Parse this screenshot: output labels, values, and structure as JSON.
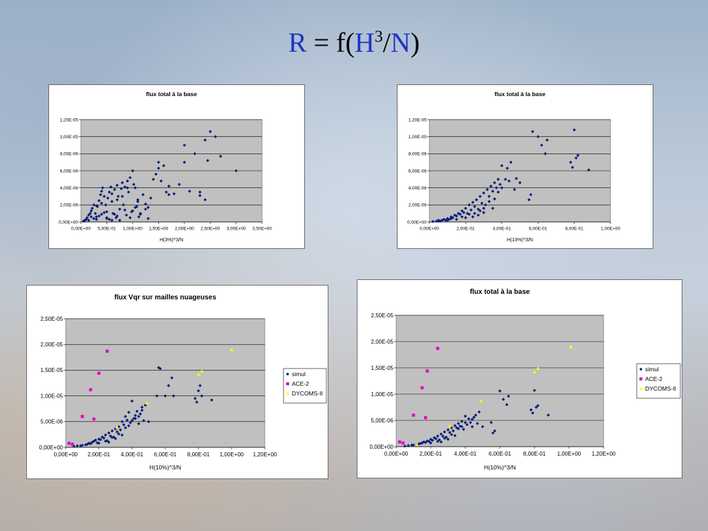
{
  "slide": {
    "title_parts": [
      "R",
      " = f(",
      "H",
      "3",
      "/",
      "N",
      ")"
    ]
  },
  "colors": {
    "simul": "#0a1e7a",
    "ace2": "#e000c8",
    "dycoms": "#ffff00",
    "plot_bg": "#c0c0c0",
    "title_accent": "#1f33c6"
  },
  "chart_data": [
    {
      "id": "c1",
      "type": "scatter",
      "title": "flux total à la base",
      "xlabel": "H(3%)^3/N",
      "ylabel": "",
      "xlim": [
        0,
        3.5
      ],
      "ylim": [
        0,
        1.2e-05
      ],
      "x_ticks": [
        0,
        0.5,
        1.0,
        1.5,
        2.0,
        2.5,
        3.0,
        3.5
      ],
      "x_tick_labels": [
        "0,00E+00",
        "5,00E-01",
        "1,00E+00",
        "1,50E+00",
        "2,00E+00",
        "2,50E+00",
        "3,00E+00",
        "3,50E+00"
      ],
      "y_ticks": [
        0,
        2e-06,
        4e-06,
        6e-06,
        8e-06,
        1e-05,
        1.2e-05
      ],
      "y_tick_labels": [
        "0,00E+00",
        "2,00E-06",
        "4,00E-06",
        "6,00E-06",
        "8,00E-06",
        "1,00E-05",
        "1,20E-05"
      ],
      "grid": true,
      "legend": "none",
      "series": [
        {
          "key": "simul",
          "x": [
            0.05,
            0.08,
            0.1,
            0.12,
            0.15,
            0.18,
            0.2,
            0.22,
            0.25,
            0.28,
            0.3,
            0.32,
            0.35,
            0.38,
            0.4,
            0.42,
            0.45,
            0.48,
            0.5,
            0.52,
            0.55,
            0.58,
            0.6,
            0.62,
            0.65,
            0.68,
            0.7,
            0.72,
            0.75,
            0.78,
            0.8,
            0.82,
            0.85,
            0.88,
            0.9,
            0.92,
            0.95,
            0.98,
            1.0,
            1.02,
            1.05,
            1.08,
            1.1,
            1.12,
            1.15,
            1.2,
            1.25,
            1.3,
            1.35,
            1.4,
            1.45,
            1.5,
            1.55,
            1.6,
            1.65,
            1.7,
            1.8,
            1.9,
            2.0,
            2.1,
            2.2,
            2.3,
            2.4,
            2.45,
            2.5,
            2.6,
            2.7,
            3.0,
            0.25,
            0.35,
            0.45,
            0.55,
            0.65,
            0.75,
            0.85,
            0.95,
            1.05,
            1.15,
            1.25,
            0.3,
            0.4,
            0.5,
            0.6,
            0.7,
            0.8,
            0.9,
            1.0,
            1.1,
            1.3,
            1.5,
            1.7,
            2.0,
            2.3,
            2.4,
            0.15,
            0.2,
            0.3,
            0.4,
            0.5,
            0.6,
            0.7
          ],
          "y": [
            1e-07,
            2e-07,
            3e-07,
            5e-07,
            8e-07,
            1e-06,
            1.3e-06,
            1.6e-06,
            2e-06,
            1e-06,
            6e-07,
            1.8e-06,
            2.5e-06,
            3.2e-06,
            3.6e-06,
            4e-06,
            3e-06,
            2e-06,
            1.2e-06,
            2.8e-06,
            3.5e-06,
            4.1e-06,
            2.4e-06,
            1e-06,
            3.8e-06,
            5e-07,
            4.3e-06,
            3e-06,
            1.5e-06,
            3.9e-06,
            4.6e-06,
            2e-06,
            4.1e-06,
            8e-07,
            4.8e-06,
            3.5e-06,
            5.2e-06,
            1.2e-06,
            6e-06,
            4.4e-06,
            4e-06,
            1.8e-06,
            2.6e-06,
            6e-07,
            1e-06,
            3.2e-06,
            1.5e-06,
            4e-07,
            2.8e-06,
            5e-06,
            5.6e-06,
            7e-06,
            4.8e-06,
            6.6e-06,
            3.5e-06,
            4.2e-06,
            3.3e-06,
            4.4e-06,
            9e-06,
            3.6e-06,
            8e-06,
            3.1e-06,
            9.6e-06,
            7.2e-06,
            1.06e-05,
            1e-05,
            7.7e-06,
            6e-06,
            4e-07,
            7e-07,
            1.1e-06,
            3e-07,
            9e-07,
            2e-07,
            1.4e-06,
            5e-07,
            1.7e-06,
            9e-07,
            2.1e-06,
            1.9e-06,
            2.2e-06,
            5e-07,
            3.3e-06,
            2.6e-06,
            3e-06,
            4e-06,
            1.3e-06,
            2.4e-06,
            1.7e-06,
            6.3e-06,
            3.2e-06,
            7e-06,
            3.5e-06,
            2.6e-06,
            2e-07,
            6e-07,
            3e-07,
            9e-07,
            4e-07,
            2e-07,
            7e-07
          ]
        }
      ]
    },
    {
      "id": "c2",
      "type": "scatter",
      "title": "flux total à la base",
      "xlabel": "H(10%)^3/N",
      "ylabel": "",
      "xlim": [
        0,
        1.0
      ],
      "ylim": [
        0,
        1.2e-05
      ],
      "x_ticks": [
        0,
        0.2,
        0.4,
        0.6,
        0.8,
        1.0
      ],
      "x_tick_labels": [
        "0,00E+00",
        "2,00E-01",
        "4,00E-01",
        "6,00E-01",
        "8,00E-01",
        "1,00E+00"
      ],
      "y_ticks": [
        0,
        2e-06,
        4e-06,
        6e-06,
        8e-06,
        1e-05,
        1.2e-05
      ],
      "y_tick_labels": [
        "0,00E+00",
        "2,00E-06",
        "4,00E-06",
        "6,00E-06",
        "8,00E-06",
        "1,00E-05",
        "1,20E-05"
      ],
      "grid": true,
      "legend": "none",
      "series": [
        {
          "key": "simul",
          "x": [
            0.02,
            0.04,
            0.05,
            0.06,
            0.08,
            0.09,
            0.1,
            0.11,
            0.12,
            0.13,
            0.14,
            0.15,
            0.16,
            0.17,
            0.18,
            0.19,
            0.2,
            0.21,
            0.22,
            0.23,
            0.24,
            0.25,
            0.26,
            0.27,
            0.28,
            0.29,
            0.3,
            0.31,
            0.32,
            0.33,
            0.34,
            0.35,
            0.36,
            0.37,
            0.38,
            0.39,
            0.4,
            0.42,
            0.43,
            0.45,
            0.47,
            0.5,
            0.55,
            0.56,
            0.57,
            0.6,
            0.62,
            0.64,
            0.65,
            0.78,
            0.79,
            0.8,
            0.81,
            0.82,
            0.88,
            0.05,
            0.07,
            0.1,
            0.12,
            0.15,
            0.18,
            0.2,
            0.22,
            0.25,
            0.28,
            0.3,
            0.33,
            0.36,
            0.38,
            0.4,
            0.44,
            0.48,
            0.35,
            0.3,
            0.27,
            0.24
          ],
          "y": [
            5e-08,
            1e-07,
            2e-07,
            1e-07,
            3e-07,
            2e-07,
            4e-07,
            3e-07,
            6e-07,
            5e-07,
            8e-07,
            7e-07,
            1e-06,
            9e-07,
            1.3e-06,
            1.1e-06,
            1.6e-06,
            1e-06,
            2e-06,
            1.4e-06,
            2.3e-06,
            1.8e-06,
            2.6e-06,
            1.5e-06,
            3e-06,
            2.2e-06,
            3.4e-06,
            2e-06,
            3.8e-06,
            3e-06,
            4.2e-06,
            3.6e-06,
            4.6e-06,
            4e-06,
            5e-06,
            4.4e-06,
            6.6e-06,
            5e-06,
            6.3e-06,
            7e-06,
            3.8e-06,
            4.6e-06,
            2.6e-06,
            3.2e-06,
            1.06e-05,
            1e-05,
            9e-06,
            8e-06,
            9.6e-06,
            7e-06,
            6.4e-06,
            1.08e-05,
            7.5e-06,
            7.8e-06,
            6.1e-06,
            1e-07,
            2e-07,
            2e-07,
            4e-07,
            3e-07,
            6e-07,
            5e-07,
            9e-07,
            1e-06,
            1.3e-06,
            1.6e-06,
            2.4e-06,
            2.7e-06,
            3.5e-06,
            4e-06,
            4.8e-06,
            5.1e-06,
            1.6e-06,
            1.1e-06,
            8e-07,
            6e-07
          ]
        }
      ]
    },
    {
      "id": "c3",
      "type": "scatter",
      "title": "flux Vqr sur mailles nuageuses",
      "xlabel": "H(10%)^3/N",
      "ylabel": "",
      "xlim": [
        0,
        1.2
      ],
      "ylim": [
        0,
        2.5e-05
      ],
      "x_ticks": [
        0,
        0.2,
        0.4,
        0.6,
        0.8,
        1.0,
        1.2
      ],
      "x_tick_labels": [
        "0,00E+00",
        "2,00E-01",
        "4,00E-01",
        "6,00E-01",
        "8,00E-01",
        "1,00E+00",
        "1,20E+00"
      ],
      "y_ticks": [
        0,
        5e-06,
        1e-05,
        1.5e-05,
        2e-05,
        2.5e-05
      ],
      "y_tick_labels": [
        "0,00E+00",
        "5,00E-06",
        "1,00E-05",
        "1,50E-05",
        "2,00E-05",
        "2,50E-05"
      ],
      "grid": true,
      "legend": "right",
      "series": [
        {
          "name": "simul",
          "key": "simul",
          "x": [
            0.05,
            0.07,
            0.09,
            0.1,
            0.12,
            0.13,
            0.14,
            0.15,
            0.16,
            0.17,
            0.18,
            0.19,
            0.2,
            0.21,
            0.22,
            0.23,
            0.24,
            0.25,
            0.26,
            0.27,
            0.28,
            0.29,
            0.3,
            0.31,
            0.32,
            0.33,
            0.34,
            0.35,
            0.36,
            0.37,
            0.38,
            0.39,
            0.4,
            0.41,
            0.42,
            0.43,
            0.44,
            0.45,
            0.46,
            0.47,
            0.48,
            0.5,
            0.55,
            0.56,
            0.57,
            0.6,
            0.62,
            0.64,
            0.65,
            0.78,
            0.79,
            0.8,
            0.81,
            0.82,
            0.88,
            0.2,
            0.24,
            0.28,
            0.32,
            0.36,
            0.4,
            0.44,
            0.26,
            0.3,
            0.34,
            0.38,
            0.42,
            0.46
          ],
          "y": [
            2e-07,
            3e-07,
            3e-07,
            4e-07,
            5e-07,
            6e-07,
            8e-07,
            7e-07,
            1e-06,
            1.2e-06,
            1.4e-06,
            9e-07,
            1.6e-06,
            1.5e-06,
            2e-06,
            1.8e-06,
            2.4e-06,
            1.3e-06,
            2.8e-06,
            2.2e-06,
            3.2e-06,
            2e-06,
            3.6e-06,
            3e-06,
            4e-06,
            3.4e-06,
            5e-06,
            4.4e-06,
            6e-06,
            5.3e-06,
            6.8e-06,
            4.8e-06,
            9e-06,
            5.6e-06,
            6.2e-06,
            7e-06,
            4.6e-06,
            6.5e-06,
            7.8e-06,
            5.2e-06,
            8.2e-06,
            5e-06,
            1e-05,
            1.55e-05,
            1.53e-05,
            1e-05,
            1.2e-05,
            1.35e-05,
            1e-05,
            9.5e-06,
            8.8e-06,
            1.1e-05,
            1.2e-05,
            1e-05,
            9.2e-06,
            8e-07,
            1.2e-06,
            1.9e-06,
            2.6e-06,
            3.8e-06,
            5.2e-06,
            6e-06,
            1e-06,
            1.7e-06,
            2.4e-06,
            4.2e-06,
            5.6e-06,
            7.2e-06
          ]
        },
        {
          "name": "ACE-2",
          "key": "ace2",
          "x": [
            0.02,
            0.04,
            0.1,
            0.15,
            0.17,
            0.2,
            0.25
          ],
          "y": [
            8e-07,
            6e-07,
            6e-06,
            1.12e-05,
            5.5e-06,
            1.44e-05,
            1.87e-05
          ]
        },
        {
          "name": "DYCOMS-II",
          "key": "dycoms",
          "x": [
            0.8,
            0.82,
            0.49,
            1.0,
            0.31
          ],
          "y": [
            1.42e-05,
            1.48e-05,
            8.6e-06,
            1.9e-05,
            3.9e-06
          ]
        }
      ]
    },
    {
      "id": "c4",
      "type": "scatter",
      "title": "flux total à la base",
      "xlabel": "H(10%)^3/N",
      "ylabel": "",
      "xlim": [
        0,
        1.2
      ],
      "ylim": [
        0,
        2.5e-05
      ],
      "x_ticks": [
        0,
        0.2,
        0.4,
        0.6,
        0.8,
        1.0,
        1.2
      ],
      "x_tick_labels": [
        "0,00E+00",
        "2,00E-01",
        "4,00E-01",
        "6,00E-01",
        "8,00E-01",
        "1,00E+00",
        "1,20E+00"
      ],
      "y_ticks": [
        0,
        5e-06,
        1e-05,
        1.5e-05,
        2e-05,
        2.5e-05
      ],
      "y_tick_labels": [
        "0,00E+00",
        "5,00E-06",
        "1,00E-05",
        "1,50E-05",
        "2,00E-05",
        "2,50E-05"
      ],
      "grid": true,
      "legend": "right",
      "series": [
        {
          "name": "simul",
          "key": "simul",
          "x": [
            0.05,
            0.07,
            0.09,
            0.1,
            0.12,
            0.13,
            0.14,
            0.15,
            0.16,
            0.17,
            0.18,
            0.19,
            0.2,
            0.21,
            0.22,
            0.23,
            0.24,
            0.25,
            0.26,
            0.27,
            0.28,
            0.29,
            0.3,
            0.31,
            0.32,
            0.33,
            0.34,
            0.35,
            0.36,
            0.37,
            0.38,
            0.39,
            0.4,
            0.41,
            0.42,
            0.43,
            0.44,
            0.45,
            0.46,
            0.47,
            0.48,
            0.5,
            0.55,
            0.56,
            0.57,
            0.6,
            0.62,
            0.64,
            0.65,
            0.78,
            0.79,
            0.8,
            0.81,
            0.82,
            0.88,
            0.2,
            0.24,
            0.28,
            0.32,
            0.36,
            0.4,
            0.44,
            0.26,
            0.3,
            0.34,
            0.38
          ],
          "y": [
            1e-07,
            2e-07,
            3e-07,
            3e-07,
            4e-07,
            5e-07,
            6e-07,
            7e-07,
            9e-07,
            8e-07,
            1.1e-06,
            1e-06,
            1.4e-06,
            1.2e-06,
            1.7e-06,
            1.5e-06,
            2e-06,
            1.3e-06,
            2.4e-06,
            2e-06,
            2.8e-06,
            1.8e-06,
            3.2e-06,
            2.7e-06,
            3.6e-06,
            3e-06,
            4e-06,
            3.6e-06,
            4.4e-06,
            3.9e-06,
            4.8e-06,
            3.3e-06,
            5.8e-06,
            4.2e-06,
            5.3e-06,
            4.6e-06,
            3.8e-06,
            5.6e-06,
            6e-06,
            4.4e-06,
            6.6e-06,
            3.8e-06,
            4.6e-06,
            2.6e-06,
            3e-06,
            1.06e-05,
            9e-06,
            8e-06,
            9.6e-06,
            7e-06,
            6.4e-06,
            1.07e-05,
            7.5e-06,
            7.8e-06,
            6e-06,
            7e-07,
            1e-06,
            1.6e-06,
            2.3e-06,
            3.4e-06,
            4.6e-06,
            5.2e-06,
            9e-07,
            1.4e-06,
            2.1e-06,
            3.8e-06
          ]
        },
        {
          "name": "ACE-2",
          "key": "ace2",
          "x": [
            0.02,
            0.04,
            0.1,
            0.15,
            0.17,
            0.18,
            0.24
          ],
          "y": [
            9e-07,
            7e-07,
            6e-06,
            1.12e-05,
            5.5e-06,
            1.44e-05,
            1.87e-05
          ]
        },
        {
          "name": "DYCOMS-II",
          "key": "dycoms",
          "x": [
            0.8,
            0.82,
            0.49,
            1.01,
            0.31,
            0.12
          ],
          "y": [
            1.42e-05,
            1.49e-05,
            8.7e-06,
            1.9e-05,
            3.9e-06,
            4e-07
          ]
        }
      ]
    }
  ]
}
